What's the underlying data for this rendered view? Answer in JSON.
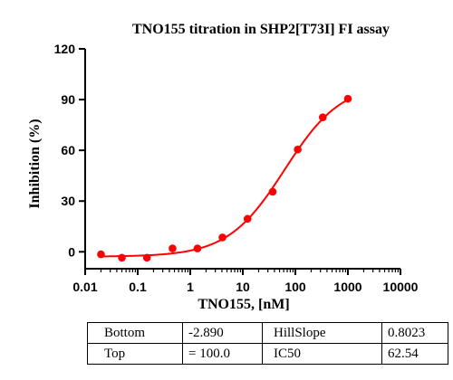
{
  "chart_data": {
    "type": "scatter",
    "title": "TNO155 titration in SHP2[T73I] FI assay",
    "xlabel": "TNO155, [nM]",
    "ylabel": "Inhibition (%)",
    "xscale": "log",
    "xlim": [
      0.01,
      10000
    ],
    "ylim": [
      -10,
      120
    ],
    "x_ticks": [
      0.01,
      0.1,
      1,
      10,
      100,
      1000,
      10000
    ],
    "x_tick_labels": [
      "0.01",
      "0.1",
      "1",
      "10",
      "100",
      "1000",
      "10000"
    ],
    "y_ticks": [
      0,
      30,
      60,
      90,
      120
    ],
    "y_tick_labels": [
      "0",
      "30",
      "60",
      "90",
      "120"
    ],
    "grid": false,
    "series": [
      {
        "color": "#ff0000",
        "x": [
          0.02,
          0.05,
          0.15,
          0.46,
          1.37,
          4.1,
          12.3,
          37,
          111,
          333,
          1000
        ],
        "y": [
          -1.5,
          -3.5,
          -3.5,
          2,
          2,
          8.5,
          19.5,
          35.5,
          60.5,
          79.5,
          90.5
        ]
      }
    ],
    "fit": {
      "model": "four-parameter logistic",
      "bottom": -2.89,
      "top": 100.0,
      "ic50": 62.54,
      "hillslope": 0.8023,
      "color": "#ff0000"
    }
  },
  "params_table": {
    "rows": [
      [
        "Bottom",
        "-2.890",
        "HillSlope",
        "0.8023"
      ],
      [
        "Top",
        "= 100.0",
        "IC50",
        "62.54"
      ]
    ]
  }
}
